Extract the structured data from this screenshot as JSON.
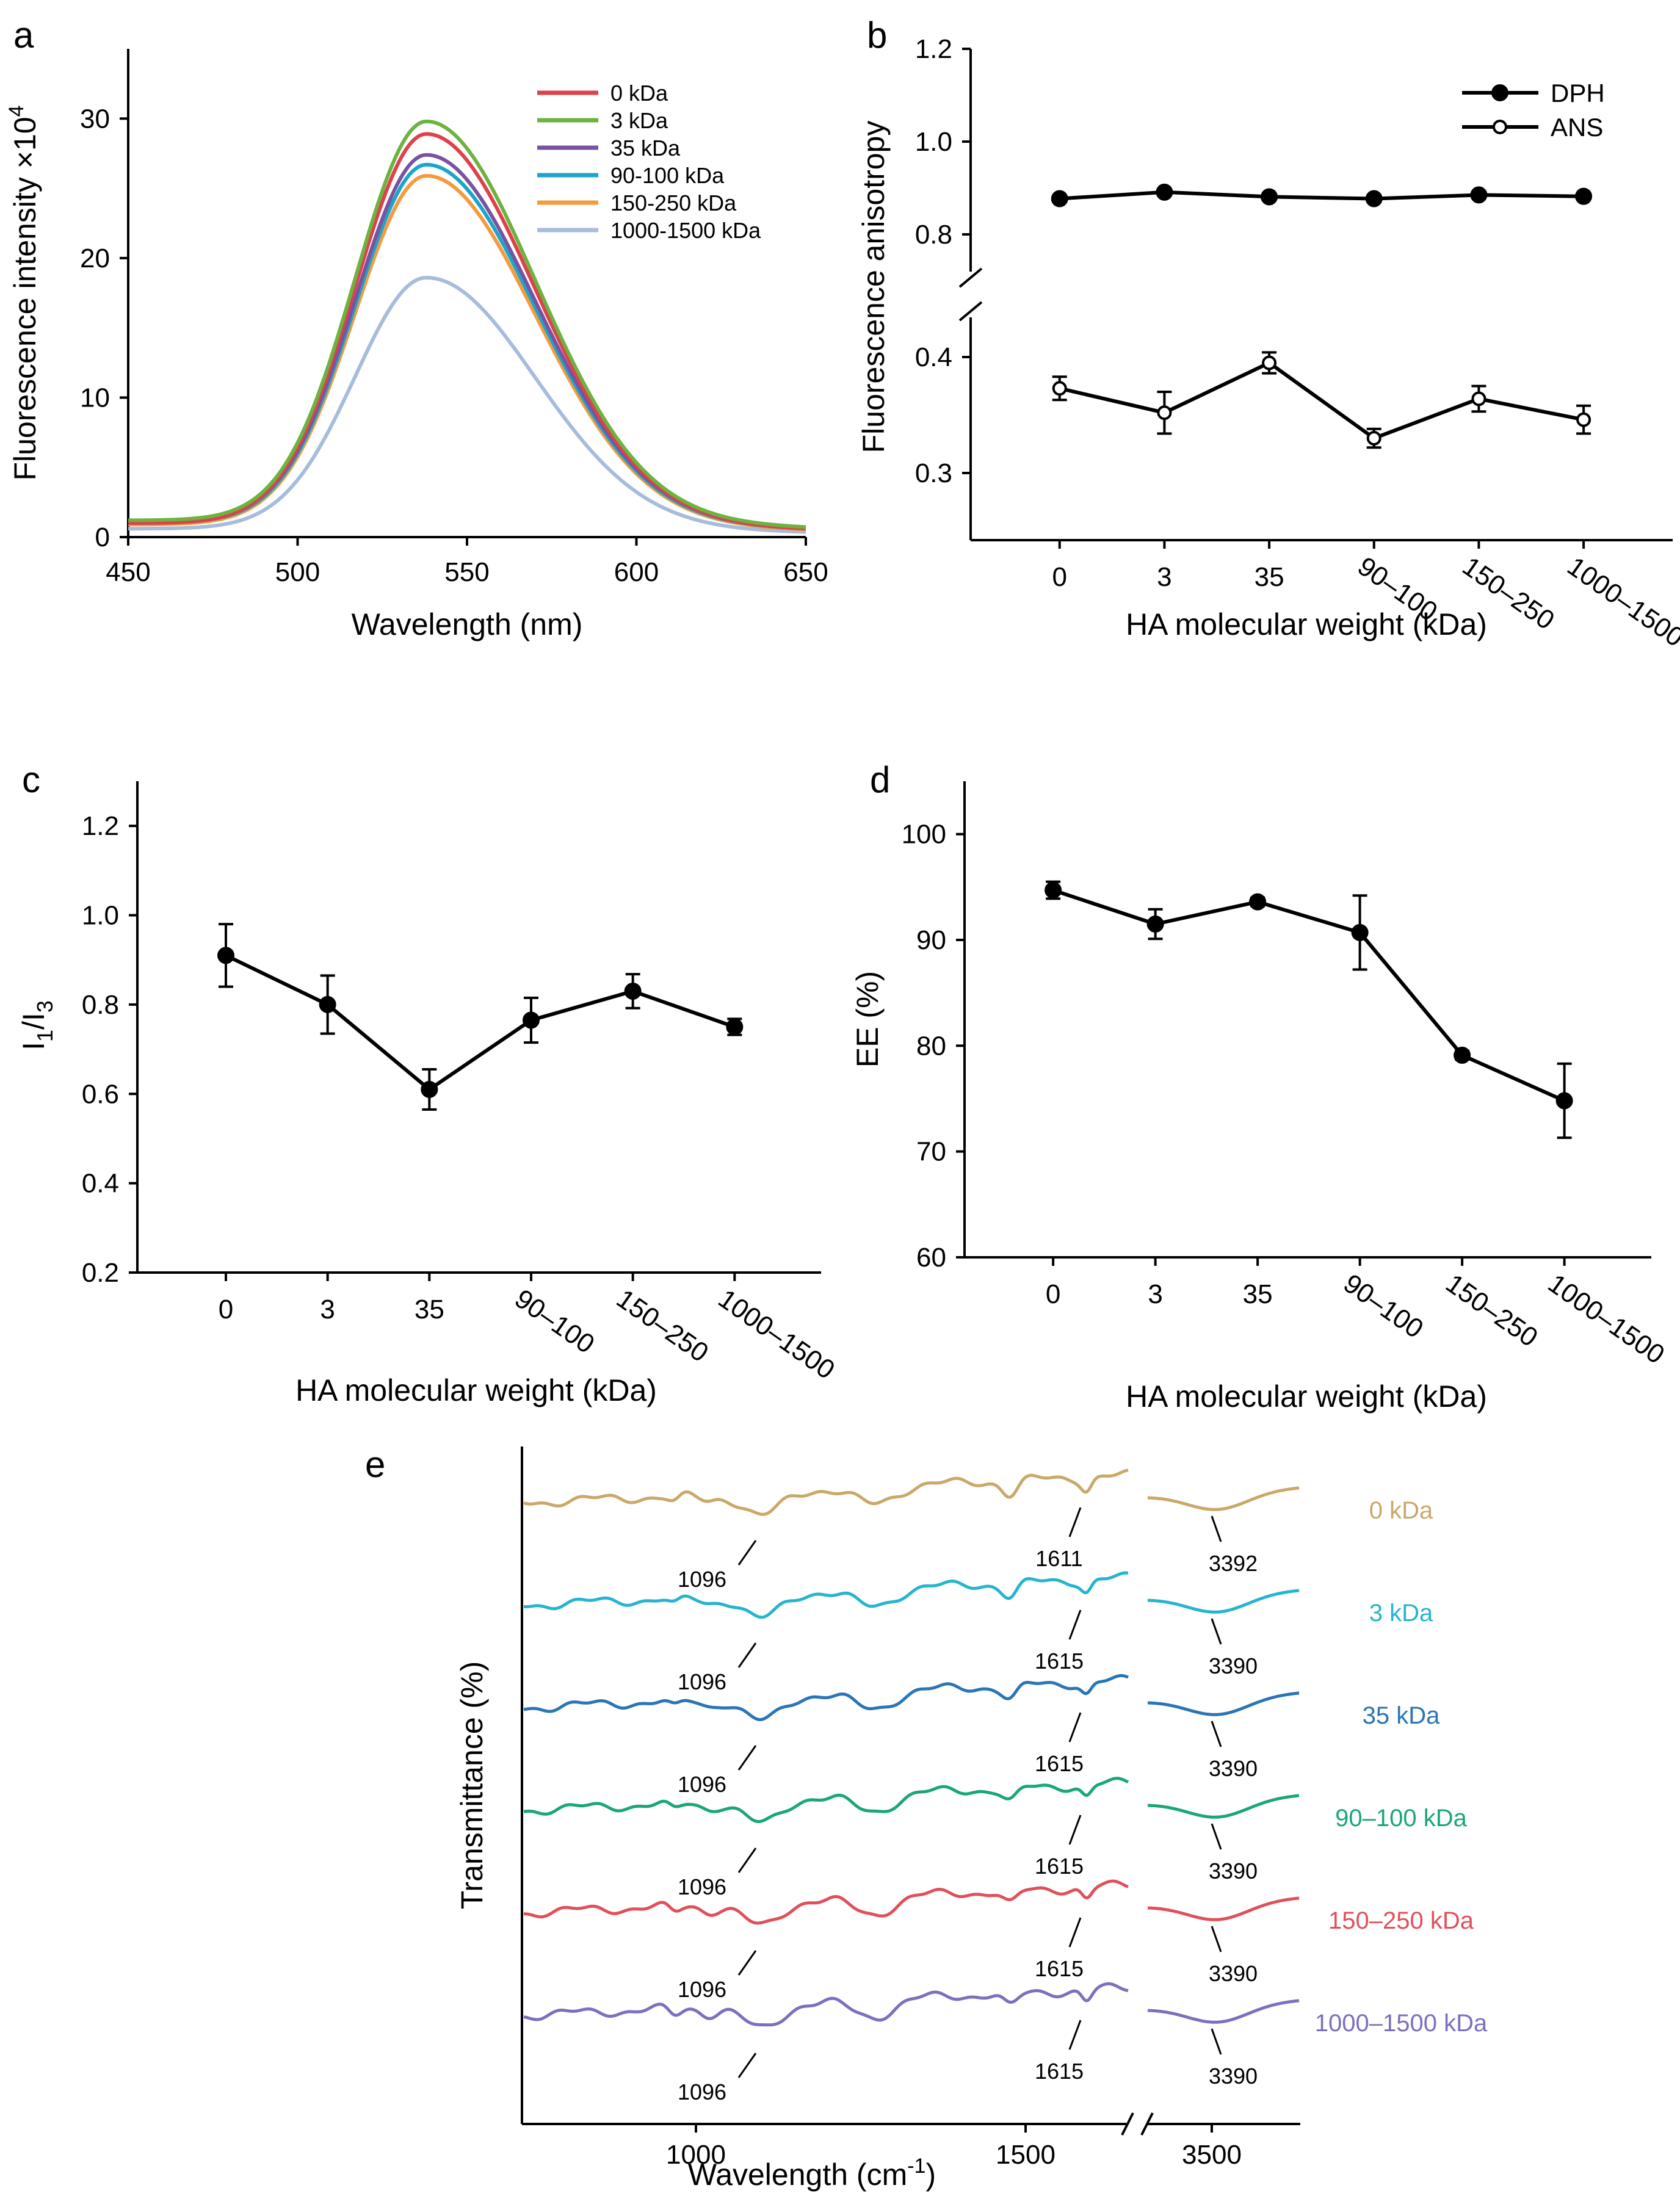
{
  "colors": {
    "a": [
      "#e0404a",
      "#6cb33f",
      "#7b51a1",
      "#1aa6c8",
      "#f59a3e",
      "#a6bcdb"
    ],
    "e": [
      "#c9a868",
      "#26b4cf",
      "#2a74b8",
      "#1aa67a",
      "#e0505a",
      "#7d6fbf"
    ]
  },
  "chart_data": [
    {
      "panel": "a",
      "type": "line",
      "xlabel": "Wavelength (nm)",
      "ylabel_main": "Fluorescence intensity ×10",
      "ylabel_exp": "4",
      "xlim": [
        450,
        650
      ],
      "ylim": [
        0,
        35
      ],
      "xticks": [
        "450",
        "500",
        "550",
        "600",
        "650"
      ],
      "yticks": [
        "0",
        "10",
        "20",
        "30"
      ],
      "series": [
        {
          "name": "0 kDa",
          "peak": 27.9,
          "base": 1.0
        },
        {
          "name": "3 kDa",
          "peak": 28.6,
          "base": 1.2
        },
        {
          "name": "35 kDa",
          "peak": 26.3,
          "base": 1.1
        },
        {
          "name": "90-100 kDa",
          "peak": 25.7,
          "base": 1.0
        },
        {
          "name": "150-250 kDa",
          "peak": 25.0,
          "base": 0.9
        },
        {
          "name": "1000-1500 kDa",
          "peak": 18.0,
          "base": 0.6
        }
      ],
      "peak_wavelength": 538
    },
    {
      "panel": "b",
      "type": "line",
      "xlabel": "HA molecular weight (kDa)",
      "ylabel": "Fluorescence anisotropy",
      "categories": [
        "0",
        "3",
        "35",
        "90–100",
        "150–250",
        "1000–1500"
      ],
      "ylim_upper": [
        0.7,
        1.2
      ],
      "ylim_lower": [
        0.25,
        0.45
      ],
      "yticks_upper": [
        "0.8",
        "1.0",
        "1.2"
      ],
      "yticks_lower": [
        "0.3",
        "0.4"
      ],
      "series": [
        {
          "name": "DPH",
          "marker": "filled",
          "values": [
            0.877,
            0.891,
            0.881,
            0.877,
            0.885,
            0.882
          ],
          "errors": [
            0.004,
            0.004,
            0.004,
            0.004,
            0.004,
            0.005
          ]
        },
        {
          "name": "ANS",
          "marker": "open",
          "values": [
            0.373,
            0.352,
            0.395,
            0.33,
            0.364,
            0.346
          ],
          "errors": [
            0.01,
            0.018,
            0.009,
            0.008,
            0.011,
            0.012
          ]
        }
      ]
    },
    {
      "panel": "c",
      "type": "line",
      "xlabel": "HA molecular weight (kDa)",
      "ylabel_main": "I",
      "ylabel_sub1": "1",
      "ylabel_mid": "/I",
      "ylabel_sub2": "3",
      "categories": [
        "0",
        "3",
        "35",
        "90–100",
        "150–250",
        "1000–1500"
      ],
      "ylim": [
        0.2,
        1.3
      ],
      "yticks": [
        "0.2",
        "0.4",
        "0.6",
        "0.8",
        "1.0",
        "1.2"
      ],
      "values": [
        0.91,
        0.8,
        0.61,
        0.765,
        0.83,
        0.75
      ],
      "errors": [
        0.07,
        0.065,
        0.045,
        0.05,
        0.038,
        0.018
      ]
    },
    {
      "panel": "d",
      "type": "line",
      "xlabel": "HA molecular weight (kDa)",
      "ylabel": "EE (%)",
      "categories": [
        "0",
        "3",
        "35",
        "90–100",
        "150–250",
        "1000–1500"
      ],
      "ylim": [
        60,
        105
      ],
      "yticks": [
        "60",
        "70",
        "80",
        "90",
        "100"
      ],
      "values": [
        94.7,
        91.5,
        93.6,
        90.7,
        79.1,
        74.8
      ],
      "errors": [
        0.8,
        1.4,
        0.4,
        3.5,
        0.4,
        3.5
      ]
    },
    {
      "panel": "e",
      "type": "line",
      "xlabel_main": "Wavelength (cm",
      "xlabel_exp": "-1",
      "xlabel_end": ")",
      "ylabel": "Transmittance (%)",
      "xticks": [
        "1000",
        "1500",
        "3500"
      ],
      "series": [
        {
          "name": "0 kDa",
          "ann1": "1096",
          "ann2": "1611",
          "ann3": "3392"
        },
        {
          "name": "3 kDa",
          "ann1": "1096",
          "ann2": "1615",
          "ann3": "3390"
        },
        {
          "name": "35 kDa",
          "ann1": "1096",
          "ann2": "1615",
          "ann3": "3390"
        },
        {
          "name": "90–100 kDa",
          "ann1": "1096",
          "ann2": "1615",
          "ann3": "3390"
        },
        {
          "name": "150–250 kDa",
          "ann1": "1096",
          "ann2": "1615",
          "ann3": "3390"
        },
        {
          "name": "1000–1500 kDa",
          "ann1": "1096",
          "ann2": "1615",
          "ann3": "3390"
        }
      ]
    }
  ],
  "panels": {
    "a": "a",
    "b": "b",
    "c": "c",
    "d": "d",
    "e": "e"
  }
}
